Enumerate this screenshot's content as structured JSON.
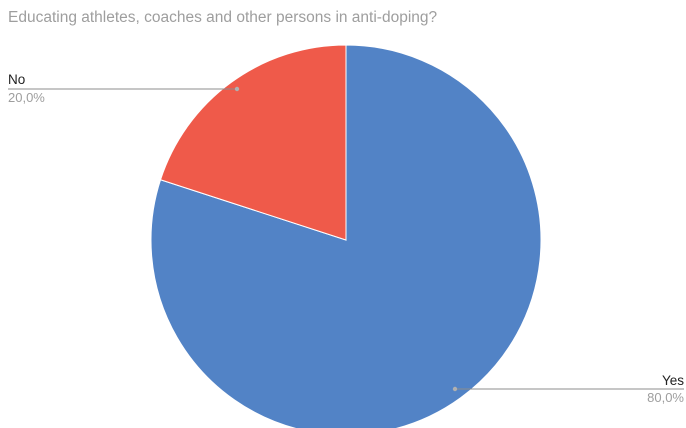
{
  "chart_data": {
    "type": "pie",
    "title": "Educating athletes, coaches and other persons in anti-doping?",
    "slices": [
      {
        "label": "Yes",
        "value": 80.0,
        "value_label": "80,0%",
        "color": "#5283c6"
      },
      {
        "label": "No",
        "value": 20.0,
        "value_label": "20,0%",
        "color": "#ef5a4a"
      }
    ],
    "legend": "none"
  }
}
